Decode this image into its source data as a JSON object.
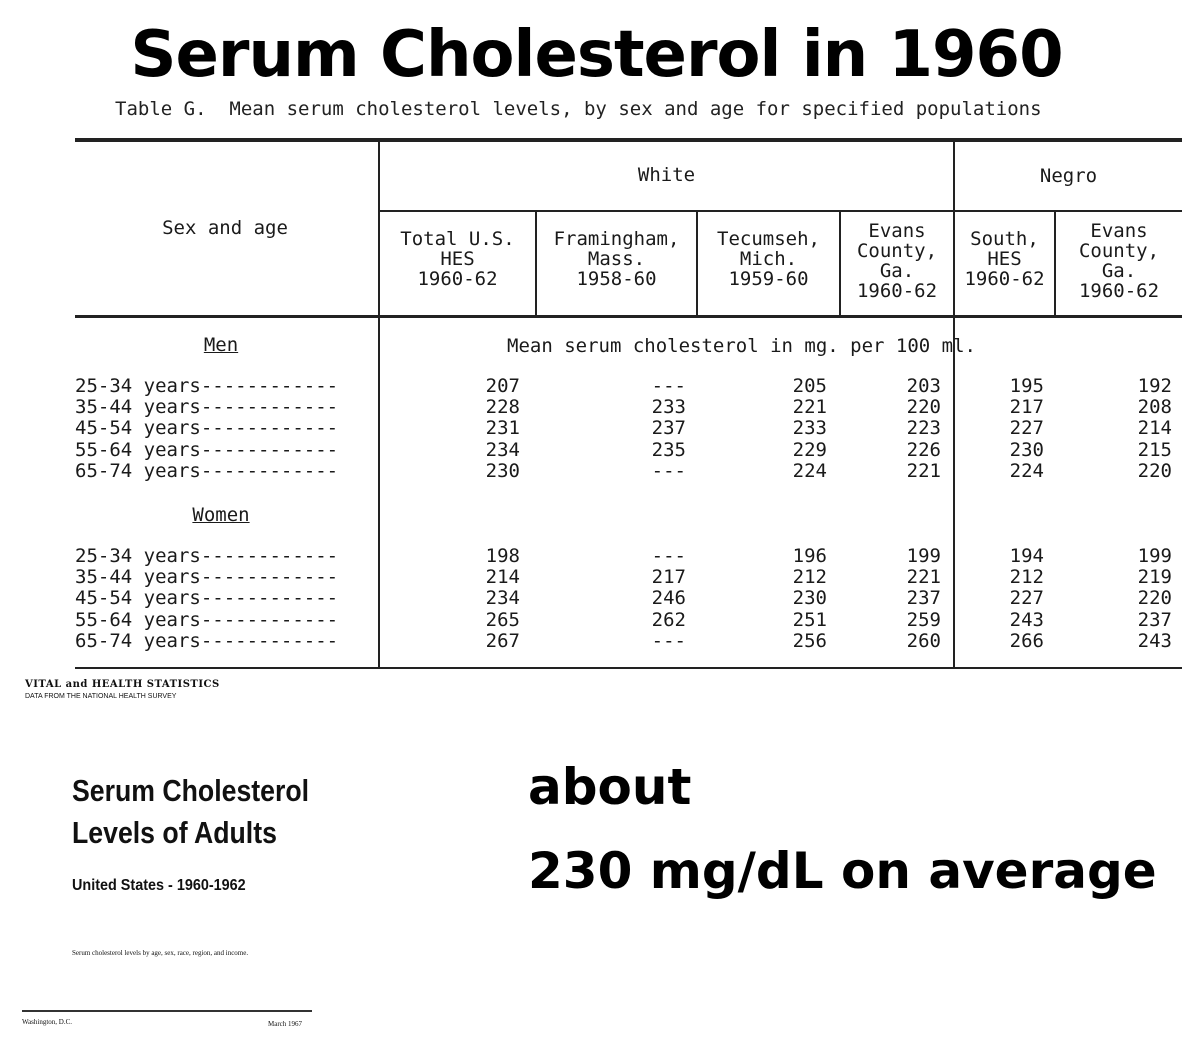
{
  "headline": "Serum Cholesterol in 1960",
  "table_caption": "Table G.  Mean serum cholesterol levels, by sex and age for specified populations",
  "header": {
    "row_header": "Sex and age",
    "group_white": "White",
    "group_negro": "Negro",
    "columns": [
      [
        "Total U.S.",
        "HES",
        "1960-62"
      ],
      [
        "Framingham,",
        "Mass.",
        "1958-60"
      ],
      [
        "Tecumseh,",
        "Mich.",
        "1959-60"
      ],
      [
        "Evans",
        "County,",
        "Ga.",
        "1960-62"
      ],
      [
        "South,",
        "HES",
        "1960-62"
      ],
      [
        "Evans",
        "County,",
        "Ga.",
        "1960-62"
      ]
    ],
    "unit_note": "Mean serum cholesterol in mg. per 100 ml."
  },
  "sections": [
    {
      "label": "Men",
      "rows": [
        {
          "age": "25-34 years------------",
          "values": [
            "207",
            "---",
            "205",
            "203",
            "195",
            "192"
          ]
        },
        {
          "age": "35-44 years------------",
          "values": [
            "228",
            "233",
            "221",
            "220",
            "217",
            "208"
          ]
        },
        {
          "age": "45-54 years------------",
          "values": [
            "231",
            "237",
            "233",
            "223",
            "227",
            "214"
          ]
        },
        {
          "age": "55-64 years------------",
          "values": [
            "234",
            "235",
            "229",
            "226",
            "230",
            "215"
          ]
        },
        {
          "age": "65-74 years------------",
          "values": [
            "230",
            "---",
            "224",
            "221",
            "224",
            "220"
          ]
        }
      ]
    },
    {
      "label": "Women",
      "rows": [
        {
          "age": "25-34 years------------",
          "values": [
            "198",
            "---",
            "196",
            "199",
            "194",
            "199"
          ]
        },
        {
          "age": "35-44 years------------",
          "values": [
            "214",
            "217",
            "212",
            "221",
            "212",
            "219"
          ]
        },
        {
          "age": "45-54 years------------",
          "values": [
            "234",
            "246",
            "230",
            "237",
            "227",
            "220"
          ]
        },
        {
          "age": "55-64 years------------",
          "values": [
            "265",
            "262",
            "251",
            "259",
            "243",
            "237"
          ]
        },
        {
          "age": "65-74 years------------",
          "values": [
            "267",
            "---",
            "256",
            "260",
            "266",
            "243"
          ]
        }
      ]
    }
  ],
  "cover": {
    "series": "VITAL and HEALTH STATISTICS",
    "series_sub": "DATA FROM THE NATIONAL HEALTH SURVEY",
    "title_line1": "Serum Cholesterol",
    "title_line2": "Levels of Adults",
    "subtitle": "United States - 1960-1962",
    "description": "Serum cholesterol levels by age, sex, race, region, and income.",
    "place": "Washington, D.C.",
    "date": "March 1967"
  },
  "note": {
    "line1": "about",
    "line2": "230 mg/dL on average"
  }
}
